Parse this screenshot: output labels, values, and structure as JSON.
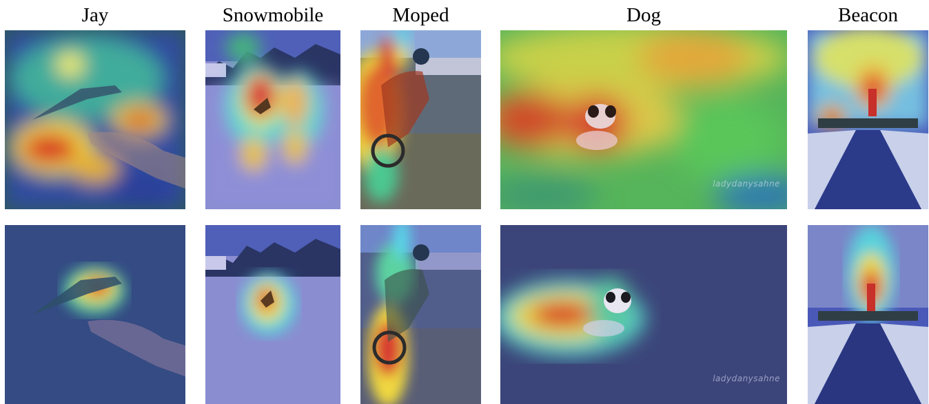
{
  "columns": [
    {
      "label": "Jay"
    },
    {
      "label": "Snowmobile"
    },
    {
      "label": "Moped"
    },
    {
      "label": "Dog"
    },
    {
      "label": "Beacon"
    }
  ],
  "watermark": "ladydanysahne",
  "colors": {
    "overlay_blue": "#3a3fb0",
    "heat_red": "#d8262a",
    "heat_yellow": "#f3e23a",
    "heat_green": "#4cc94b",
    "heat_cyan": "#36c6e6"
  }
}
